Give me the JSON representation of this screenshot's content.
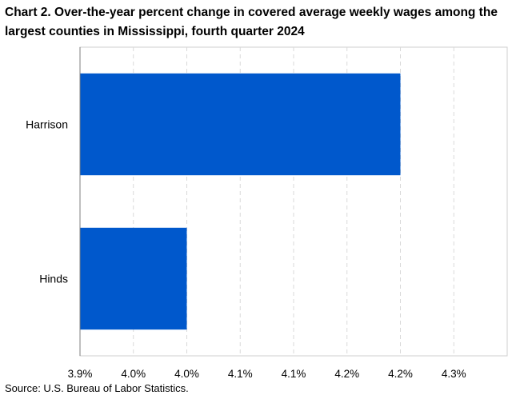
{
  "chart_data": {
    "type": "bar",
    "orientation": "horizontal",
    "title": "Chart 2. Over-the-year percent change in covered average weekly wages among the largest counties in Mississippi,  fourth quarter 2024",
    "categories": [
      "Harrison",
      "Hinds"
    ],
    "values": [
      4.2,
      4.0
    ],
    "xlim": [
      3.9,
      4.3
    ],
    "xticks": [
      3.9,
      3.95,
      4.0,
      4.05,
      4.1,
      4.15,
      4.2,
      4.25
    ],
    "xtick_labels": [
      "3.9%",
      "4.0%",
      "4.0%",
      "4.1%",
      "4.1%",
      "4.2%",
      "4.2%",
      "4.3%"
    ],
    "grid": "vertical-dashed",
    "bar_color": "#0058CC",
    "legend": "none"
  },
  "source": "Source: U.S. Bureau of Labor Statistics."
}
